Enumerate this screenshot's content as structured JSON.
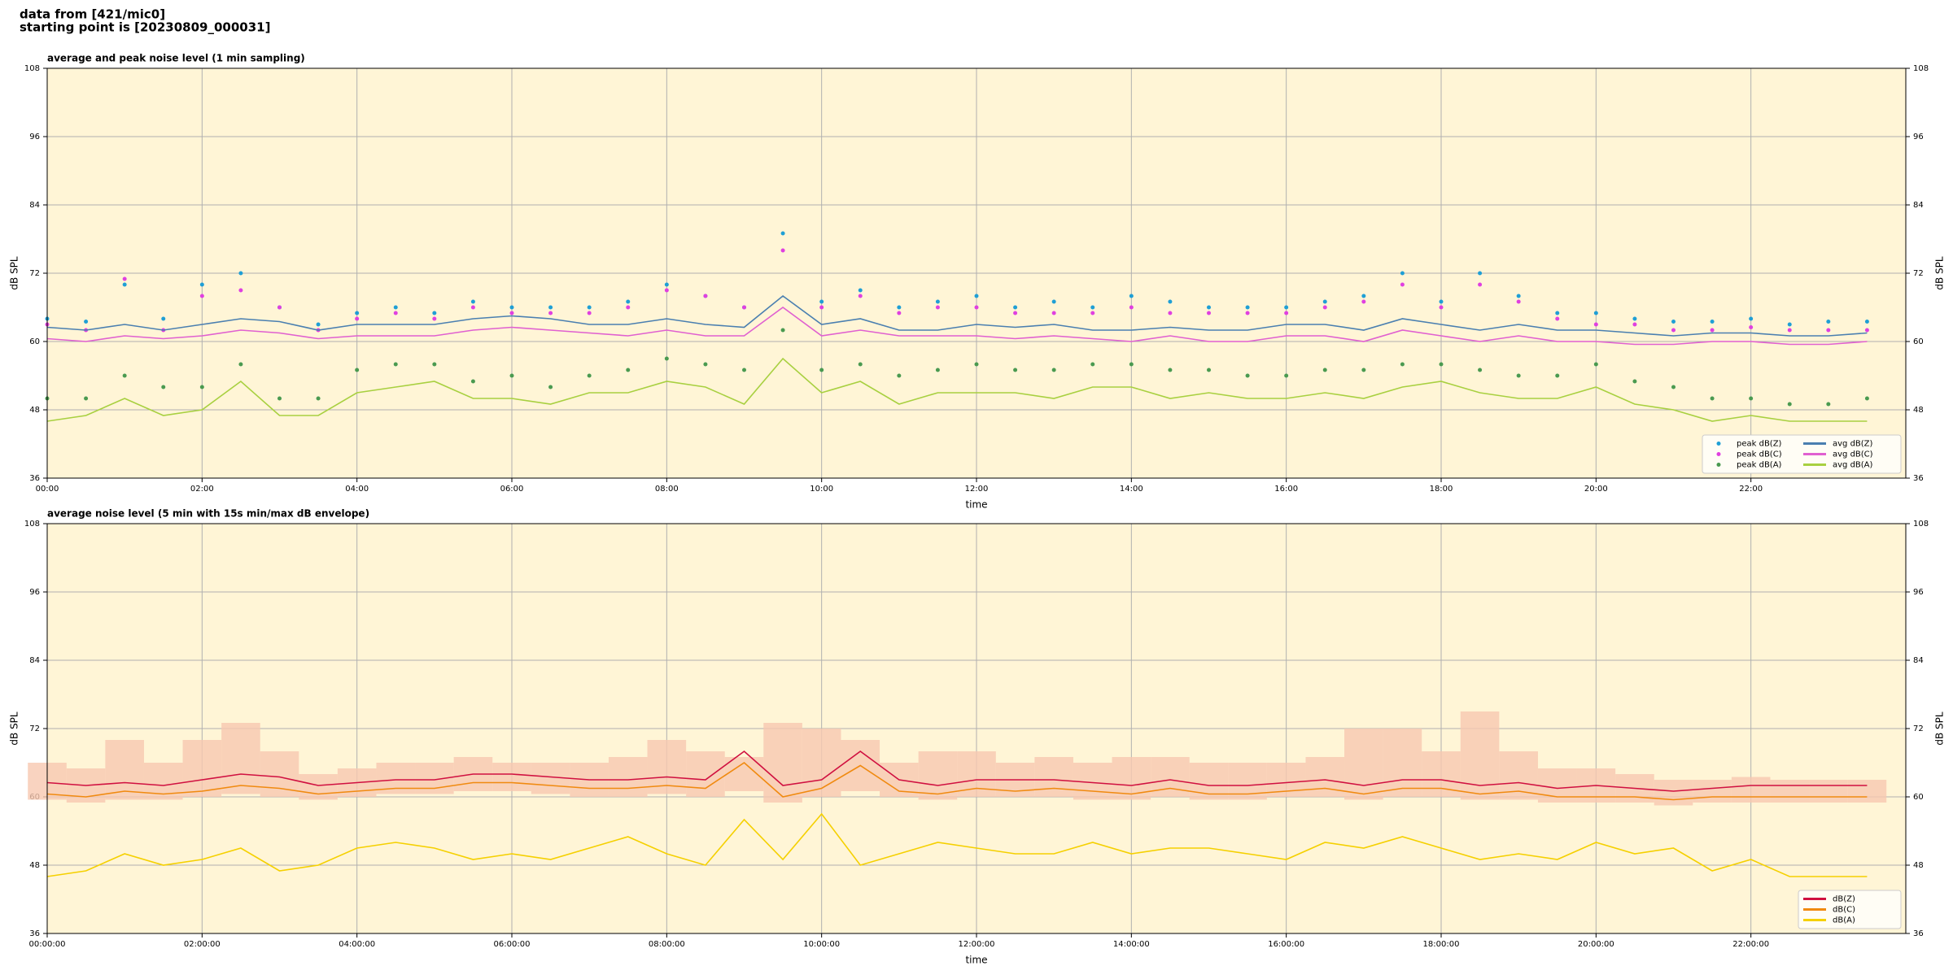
{
  "header": {
    "lines": [
      "data from [421/mic0]",
      "starting point is [20230809_000031]"
    ]
  },
  "chart_data": [
    {
      "type": "mixed",
      "title": "average and peak noise level (1 min sampling)",
      "x_label": "time",
      "y_label": "dB SPL",
      "facecolor": "#fff5d6",
      "grid": true,
      "legend": "lower right",
      "legend_columns": 2,
      "xlim": [
        0,
        24
      ],
      "xticks": [
        {
          "value": 0,
          "label": "00:00"
        },
        {
          "value": 2,
          "label": "02:00"
        },
        {
          "value": 4,
          "label": "04:00"
        },
        {
          "value": 6,
          "label": "06:00"
        },
        {
          "value": 8,
          "label": "08:00"
        },
        {
          "value": 10,
          "label": "10:00"
        },
        {
          "value": 12,
          "label": "12:00"
        },
        {
          "value": 14,
          "label": "14:00"
        },
        {
          "value": 16,
          "label": "16:00"
        },
        {
          "value": 18,
          "label": "18:00"
        },
        {
          "value": 20,
          "label": "20:00"
        },
        {
          "value": 22,
          "label": "22:00"
        }
      ],
      "ylim": [
        36,
        108
      ],
      "yticks": [
        36,
        48,
        60,
        72,
        84,
        96,
        108
      ],
      "x": [
        0,
        0.5,
        1,
        1.5,
        2,
        2.5,
        3,
        3.5,
        4,
        4.5,
        5,
        5.5,
        6,
        6.5,
        7,
        7.5,
        8,
        8.5,
        9,
        9.5,
        10,
        10.5,
        11,
        11.5,
        12,
        12.5,
        13,
        13.5,
        14,
        14.5,
        15,
        15.5,
        16,
        16.5,
        17,
        17.5,
        18,
        18.5,
        19,
        19.5,
        20,
        20.5,
        21,
        21.5,
        22,
        22.5,
        23,
        23.5
      ],
      "series": [
        {
          "name": "peak dB(Z)",
          "type": "scatter",
          "color": "#1f9fd5",
          "values": [
            64,
            63.5,
            70,
            64,
            70,
            72,
            66,
            63,
            65,
            66,
            65,
            67,
            66,
            66,
            66,
            67,
            70,
            68,
            66,
            79,
            67,
            69,
            66,
            67,
            68,
            66,
            67,
            66,
            68,
            67,
            66,
            66,
            66,
            67,
            68,
            72,
            67,
            72,
            68,
            65,
            65,
            64,
            63.5,
            63.5,
            64,
            63,
            63.5,
            63.5
          ]
        },
        {
          "name": "peak dB(C)",
          "type": "scatter",
          "color": "#e040e0",
          "values": [
            63,
            62,
            71,
            62,
            68,
            69,
            66,
            62,
            64,
            65,
            64,
            66,
            65,
            65,
            65,
            66,
            69,
            68,
            66,
            76,
            66,
            68,
            65,
            66,
            66,
            65,
            65,
            65,
            66,
            65,
            65,
            65,
            65,
            66,
            67,
            70,
            66,
            70,
            67,
            64,
            63,
            63,
            62,
            62,
            62.5,
            62,
            62,
            62
          ]
        },
        {
          "name": "peak dB(A)",
          "type": "scatter",
          "color": "#4a9a50",
          "values": [
            50,
            50,
            54,
            52,
            52,
            56,
            50,
            50,
            55,
            56,
            56,
            53,
            54,
            52,
            54,
            55,
            57,
            56,
            55,
            62,
            55,
            56,
            54,
            55,
            56,
            55,
            55,
            56,
            56,
            55,
            55,
            54,
            54,
            55,
            55,
            56,
            56,
            55,
            54,
            54,
            56,
            53,
            52,
            50,
            50,
            49,
            49,
            50
          ]
        },
        {
          "name": "avg dB(Z)",
          "type": "line",
          "color": "#4a7fb0",
          "values": [
            62.5,
            62,
            63,
            62,
            63,
            64,
            63.5,
            62,
            63,
            63,
            63,
            64,
            64.5,
            64,
            63,
            63,
            64,
            63,
            62.5,
            68,
            63,
            64,
            62,
            62,
            63,
            62.5,
            63,
            62,
            62,
            62.5,
            62,
            62,
            63,
            63,
            62,
            64,
            63,
            62,
            63,
            62,
            62,
            61.5,
            61,
            61.5,
            61.5,
            61,
            61,
            61.5
          ]
        },
        {
          "name": "avg dB(C)",
          "type": "line",
          "color": "#e060d0",
          "values": [
            60.5,
            60,
            61,
            60.5,
            61,
            62,
            61.5,
            60.5,
            61,
            61,
            61,
            62,
            62.5,
            62,
            61.5,
            61,
            62,
            61,
            61,
            66,
            61,
            62,
            61,
            61,
            61,
            60.5,
            61,
            60.5,
            60,
            61,
            60,
            60,
            61,
            61,
            60,
            62,
            61,
            60,
            61,
            60,
            60,
            59.5,
            59.5,
            60,
            60,
            59.5,
            59.5,
            60
          ]
        },
        {
          "name": "avg dB(A)",
          "type": "line",
          "color": "#a8d040",
          "values": [
            46,
            47,
            50,
            47,
            48,
            53,
            47,
            47,
            51,
            52,
            53,
            50,
            50,
            49,
            51,
            51,
            53,
            52,
            49,
            57,
            51,
            53,
            49,
            51,
            51,
            51,
            50,
            52,
            52,
            50,
            51,
            50,
            50,
            51,
            50,
            52,
            53,
            51,
            50,
            50,
            52,
            49,
            48,
            46,
            47,
            46,
            46,
            46
          ]
        }
      ]
    },
    {
      "type": "line",
      "title": "average noise level (5 min with 15s min/max dB envelope)",
      "x_label": "time",
      "y_label": "dB SPL",
      "facecolor": "#fff5d6",
      "grid": true,
      "legend": "lower right",
      "legend_columns": 1,
      "xlim": [
        0,
        24
      ],
      "xticks": [
        {
          "value": 0,
          "label": "00:00:00"
        },
        {
          "value": 2,
          "label": "02:00:00"
        },
        {
          "value": 4,
          "label": "04:00:00"
        },
        {
          "value": 6,
          "label": "06:00:00"
        },
        {
          "value": 8,
          "label": "08:00:00"
        },
        {
          "value": 10,
          "label": "10:00:00"
        },
        {
          "value": 12,
          "label": "12:00:00"
        },
        {
          "value": 14,
          "label": "14:00:00"
        },
        {
          "value": 16,
          "label": "16:00:00"
        },
        {
          "value": 18,
          "label": "18:00:00"
        },
        {
          "value": 20,
          "label": "20:00:00"
        },
        {
          "value": 22,
          "label": "22:00:00"
        }
      ],
      "ylim": [
        36,
        108
      ],
      "yticks": [
        36,
        48,
        60,
        72,
        84,
        96,
        108
      ],
      "x": [
        0,
        0.5,
        1,
        1.5,
        2,
        2.5,
        3,
        3.5,
        4,
        4.5,
        5,
        5.5,
        6,
        6.5,
        7,
        7.5,
        8,
        8.5,
        9,
        9.5,
        10,
        10.5,
        11,
        11.5,
        12,
        12.5,
        13,
        13.5,
        14,
        14.5,
        15,
        15.5,
        16,
        16.5,
        17,
        17.5,
        18,
        18.5,
        19,
        19.5,
        20,
        20.5,
        21,
        21.5,
        22,
        22.5,
        23,
        23.5
      ],
      "envelope": {
        "color": "#f8c8b0",
        "low": [
          59.5,
          59,
          59.5,
          59.5,
          60,
          60.5,
          60,
          59.5,
          60,
          60.5,
          60.5,
          61,
          61,
          60.5,
          60,
          60,
          60.5,
          60,
          61,
          59,
          60,
          61,
          60,
          59.5,
          60,
          60,
          60,
          59.5,
          59.5,
          60,
          59.5,
          59.5,
          60,
          60,
          59.5,
          60,
          60,
          59.5,
          59.5,
          59,
          59,
          59,
          58.5,
          59,
          59,
          59,
          59,
          59
        ],
        "high": [
          66,
          65,
          70,
          66,
          70,
          73,
          68,
          64,
          65,
          66,
          66,
          67,
          66,
          66,
          66,
          67,
          70,
          68,
          67,
          73,
          72,
          70,
          66,
          68,
          68,
          66,
          67,
          66,
          67,
          67,
          66,
          66,
          66,
          67,
          72,
          72,
          68,
          75,
          68,
          65,
          65,
          64,
          63,
          63,
          63.5,
          63,
          63,
          63
        ]
      },
      "series": [
        {
          "name": "dB(Z)",
          "type": "line",
          "color": "#d01040",
          "values": [
            62.5,
            62,
            62.5,
            62,
            63,
            64,
            63.5,
            62,
            62.5,
            63,
            63,
            64,
            64,
            63.5,
            63,
            63,
            63.5,
            63,
            68,
            62,
            63,
            68,
            63,
            62,
            63,
            63,
            63,
            62.5,
            62,
            63,
            62,
            62,
            62.5,
            63,
            62,
            63,
            63,
            62,
            62.5,
            61.5,
            62,
            61.5,
            61,
            61.5,
            62,
            62,
            62,
            62
          ]
        },
        {
          "name": "dB(C)",
          "type": "line",
          "color": "#f08a10",
          "values": [
            60.5,
            60,
            61,
            60.5,
            61,
            62,
            61.5,
            60.5,
            61,
            61.5,
            61.5,
            62.5,
            62.5,
            62,
            61.5,
            61.5,
            62,
            61.5,
            66,
            60,
            61.5,
            65.5,
            61,
            60.5,
            61.5,
            61,
            61.5,
            61,
            60.5,
            61.5,
            60.5,
            60.5,
            61,
            61.5,
            60.5,
            61.5,
            61.5,
            60.5,
            61,
            60,
            60,
            60,
            59.5,
            60,
            60,
            60,
            60,
            60
          ]
        },
        {
          "name": "dB(A)",
          "type": "line",
          "color": "#f5d000",
          "values": [
            46,
            47,
            50,
            48,
            49,
            51,
            47,
            48,
            51,
            52,
            51,
            49,
            50,
            49,
            51,
            53,
            50,
            48,
            56,
            49,
            57,
            48,
            50,
            52,
            51,
            50,
            50,
            52,
            50,
            51,
            51,
            50,
            49,
            52,
            51,
            53,
            51,
            49,
            50,
            49,
            52,
            50,
            51,
            47,
            49,
            46,
            46,
            46
          ]
        }
      ]
    }
  ]
}
